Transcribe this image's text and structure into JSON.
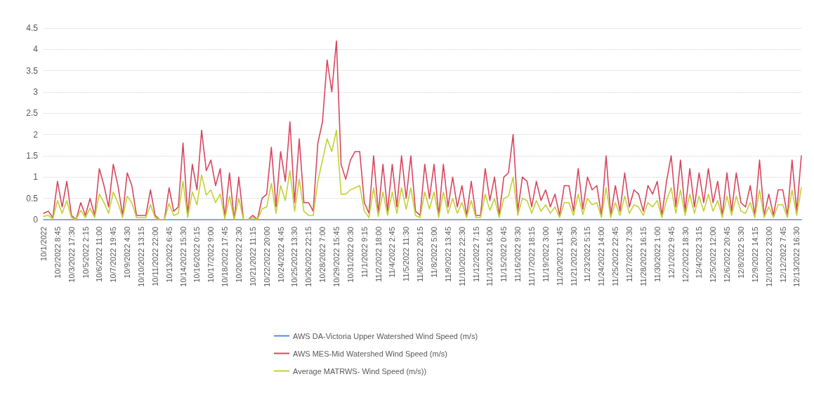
{
  "chart_data": {
    "type": "line",
    "categories": [
      "10/1/2022",
      null,
      null,
      "10/2/2022 8:45",
      null,
      null,
      "10/3/2022 17:30",
      null,
      null,
      "10/5/2022 2:15",
      null,
      null,
      "10/6/2022 11:00",
      null,
      null,
      "10/7/2022 19:45",
      null,
      null,
      "10/9/2022 4:30",
      null,
      null,
      "10/10/2022 13:15",
      null,
      null,
      "10/11/2022 22:00",
      null,
      null,
      "10/13/2022 6:45",
      null,
      null,
      "10/14/2022 15:30",
      null,
      null,
      "10/16/2022 0:15",
      null,
      null,
      "10/17/2022 9:00",
      null,
      null,
      "10/18/2022 17:45",
      null,
      null,
      "10/20/2022 2:30",
      null,
      null,
      "10/21/2022 11:15",
      null,
      null,
      "10/22/2022 20:00",
      null,
      null,
      "10/24/2022 4:45",
      null,
      null,
      "10/25/2022 13:30",
      null,
      null,
      "10/26/2022 22:15",
      null,
      null,
      "10/28/2022 7:00",
      null,
      null,
      "10/29/2022 15:45",
      null,
      null,
      "10/31/2022 0:30",
      null,
      null,
      "11/1/2022 9:15",
      null,
      null,
      "11/2/2022 18:00",
      null,
      null,
      "11/4/2022 2:45",
      null,
      null,
      "11/5/2022 11:30",
      null,
      null,
      "11/6/2022 20:15",
      null,
      null,
      "11/8/2022 5:00",
      null,
      null,
      "11/9/2022 13:45",
      null,
      null,
      "11/10/2022 22:30",
      null,
      null,
      "11/12/2022 7:15",
      null,
      null,
      "11/13/2022 16:00",
      null,
      null,
      "11/15/2022 0:45",
      null,
      null,
      "11/16/2022 9:30",
      null,
      null,
      "11/17/2022 18:15",
      null,
      null,
      "11/19/2022 3:00",
      null,
      null,
      "11/20/2022 11:45",
      null,
      null,
      "11/21/2022 20:30",
      null,
      null,
      "11/23/2022 5:15",
      null,
      null,
      "11/24/2022 14:00",
      null,
      null,
      "11/25/2022 22:45",
      null,
      null,
      "11/27/2022 7:30",
      null,
      null,
      "11/28/2022 16:15",
      null,
      null,
      "11/30/2022 1:00",
      null,
      null,
      "12/1/2022 9:45",
      null,
      null,
      "12/2/2022 18:30",
      null,
      null,
      "12/4/2022 3:15",
      null,
      null,
      "12/5/2022 12:00",
      null,
      null,
      "12/6/2022 20:45",
      null,
      null,
      "12/8/2022 5:30",
      null,
      null,
      "12/9/2022 14:15",
      null,
      null,
      "12/10/2022 23:00",
      null,
      null,
      "12/12/2022 7:45",
      null,
      null,
      "12/13/2022 16:30",
      null
    ],
    "series": [
      {
        "name": "AWS DA-Victoria Upper Watershed Wind Speed (m/s)",
        "color": "#4a8fe0",
        "values": [
          0,
          0,
          0,
          0,
          0,
          0,
          0,
          0,
          0,
          0,
          0,
          0,
          0,
          0,
          0,
          0,
          0,
          0,
          0,
          0,
          0,
          0,
          0,
          0,
          0,
          0,
          0,
          0,
          0,
          0,
          0,
          0,
          0,
          0,
          0,
          0,
          0,
          0,
          0,
          0,
          0,
          0,
          0,
          0,
          0,
          0,
          0,
          0,
          0,
          0,
          0,
          0,
          0,
          0,
          0,
          0,
          0,
          0,
          0,
          0,
          0,
          0,
          0,
          0,
          0,
          0,
          0,
          0,
          0,
          0,
          0,
          0,
          0,
          0,
          0,
          0,
          0,
          0,
          0,
          0,
          0,
          0,
          0,
          0,
          0,
          0,
          0,
          0,
          0,
          0,
          0,
          0,
          0,
          0,
          0,
          0,
          0,
          0,
          0,
          0,
          0,
          0,
          0,
          0,
          0,
          0,
          0,
          0,
          0,
          0,
          0,
          0,
          0,
          0,
          0,
          0,
          0,
          0,
          0,
          0,
          0,
          0,
          0,
          0,
          0,
          0,
          0,
          0,
          0,
          0,
          0,
          0,
          0,
          0,
          0,
          0,
          0,
          0,
          0,
          0,
          0,
          0,
          0,
          0,
          0,
          0,
          0,
          0,
          0,
          0,
          0,
          0,
          0,
          0,
          0,
          0,
          0,
          0,
          0,
          0,
          0,
          0,
          0,
          0
        ]
      },
      {
        "name": "AWS MES-Mid Watershed Wind Speed (m/s)",
        "color": "#d9465f",
        "values": [
          0.15,
          0.2,
          0.05,
          0.9,
          0.3,
          0.9,
          0.1,
          0,
          0.4,
          0.1,
          0.5,
          0.1,
          1.2,
          0.8,
          0.3,
          1.3,
          0.8,
          0.1,
          1.1,
          0.8,
          0.1,
          0.1,
          0.1,
          0.7,
          0.1,
          0,
          0,
          0.75,
          0.2,
          0.3,
          1.8,
          0.1,
          1.3,
          0.7,
          2.1,
          1.15,
          1.4,
          0.8,
          1.2,
          0.05,
          1.1,
          0,
          1.0,
          0,
          0,
          0.1,
          0,
          0.5,
          0.6,
          1.7,
          0.3,
          1.6,
          0.9,
          2.3,
          0.4,
          1.9,
          0.4,
          0.4,
          0.2,
          1.8,
          2.3,
          3.75,
          3.0,
          4.2,
          1.3,
          0.95,
          1.4,
          1.6,
          1.6,
          0.4,
          0.15,
          1.5,
          0.15,
          1.3,
          0.2,
          1.3,
          0.3,
          1.5,
          0.5,
          1.5,
          0.2,
          0.1,
          1.3,
          0.5,
          1.3,
          0.1,
          1.3,
          0.3,
          1.0,
          0.3,
          0.8,
          0.1,
          0.9,
          0.1,
          0.1,
          1.2,
          0.45,
          1.0,
          0.1,
          1.0,
          1.1,
          2.0,
          0.2,
          1.0,
          0.9,
          0.3,
          0.9,
          0.45,
          0.7,
          0.3,
          0.6,
          0.1,
          0.8,
          0.8,
          0.2,
          1.2,
          0.25,
          1.0,
          0.7,
          0.8,
          0.1,
          1.5,
          0.1,
          0.8,
          0.2,
          1.1,
          0.3,
          0.7,
          0.6,
          0.2,
          0.8,
          0.6,
          0.9,
          0.1,
          0.9,
          1.5,
          0.3,
          1.4,
          0.2,
          1.2,
          0.3,
          1.1,
          0.4,
          1.2,
          0.4,
          0.9,
          0.1,
          1.1,
          0.2,
          1.1,
          0.4,
          0.3,
          0.8,
          0.1,
          1.4,
          0.1,
          0.6,
          0.1,
          0.7,
          0.7,
          0.1,
          1.4,
          0.2,
          1.5
        ]
      },
      {
        "name": "Average MATRWS- Wind Speed (m/s))",
        "color": "#c3d133",
        "values": [
          0.08,
          0.1,
          0.02,
          0.45,
          0.15,
          0.45,
          0.05,
          0,
          0.22,
          0.05,
          0.27,
          0.05,
          0.6,
          0.4,
          0.15,
          0.65,
          0.4,
          0.05,
          0.55,
          0.4,
          0.05,
          0.05,
          0.05,
          0.35,
          0.05,
          0,
          0,
          0.38,
          0.1,
          0.15,
          0.9,
          0.05,
          0.65,
          0.35,
          1.05,
          0.58,
          0.7,
          0.4,
          0.6,
          0.02,
          0.55,
          0,
          0.5,
          0,
          0,
          0.05,
          0,
          0.25,
          0.3,
          0.85,
          0.15,
          0.8,
          0.45,
          1.15,
          0.2,
          0.95,
          0.2,
          0.1,
          0.1,
          0.9,
          1.4,
          1.9,
          1.6,
          2.1,
          0.6,
          0.6,
          0.7,
          0.75,
          0.8,
          0.2,
          0.05,
          0.75,
          0.08,
          0.65,
          0.1,
          0.65,
          0.15,
          0.75,
          0.25,
          0.75,
          0.1,
          0.05,
          0.65,
          0.25,
          0.65,
          0.05,
          0.65,
          0.15,
          0.5,
          0.15,
          0.4,
          0.05,
          0.45,
          0.05,
          0.05,
          0.6,
          0.22,
          0.5,
          0.05,
          0.5,
          0.55,
          1.0,
          0.1,
          0.5,
          0.45,
          0.15,
          0.45,
          0.2,
          0.35,
          0.15,
          0.3,
          0.05,
          0.4,
          0.4,
          0.1,
          0.6,
          0.12,
          0.5,
          0.35,
          0.4,
          0.05,
          0.75,
          0.05,
          0.4,
          0.1,
          0.55,
          0.15,
          0.35,
          0.3,
          0.1,
          0.4,
          0.3,
          0.45,
          0.05,
          0.45,
          0.75,
          0.15,
          0.7,
          0.1,
          0.6,
          0.15,
          0.55,
          0.2,
          0.6,
          0.2,
          0.45,
          0.05,
          0.55,
          0.1,
          0.55,
          0.2,
          0.15,
          0.4,
          0.05,
          0.7,
          0.05,
          0.3,
          0.05,
          0.35,
          0.35,
          0.05,
          0.7,
          0.1,
          0.75
        ]
      }
    ],
    "ylim": [
      0,
      4.5
    ],
    "yticks": [
      0,
      0.5,
      1,
      1.5,
      2,
      2.5,
      3,
      3.5,
      4,
      4.5
    ],
    "grid": "y",
    "legend": "bottom",
    "marker": "none",
    "line_style": "solid"
  }
}
